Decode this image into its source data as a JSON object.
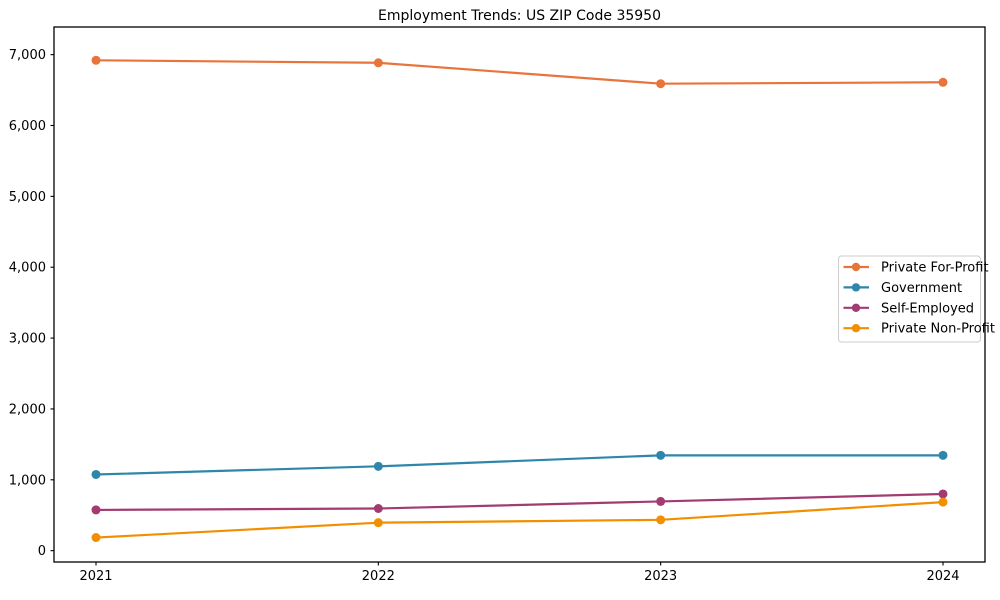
{
  "title": "Employment Trends: US ZIP Code 35950",
  "chart_data": {
    "type": "line",
    "title": "Employment Trends: US ZIP Code 35950",
    "categories": [
      "2021",
      "2022",
      "2023",
      "2024"
    ],
    "series": [
      {
        "name": "Private For-Profit",
        "color": "#E8743B",
        "values": [
          6920,
          6885,
          6590,
          6610
        ]
      },
      {
        "name": "Government",
        "color": "#2E86AB",
        "values": [
          1075,
          1190,
          1345,
          1345
        ]
      },
      {
        "name": "Self-Employed",
        "color": "#A23B72",
        "values": [
          575,
          595,
          695,
          800
        ]
      },
      {
        "name": "Private Non-Profit",
        "color": "#F18F01",
        "values": [
          185,
          395,
          435,
          685
        ]
      }
    ],
    "xlabel": "",
    "ylabel": "",
    "ylim": [
      -160,
      7390
    ],
    "yticks": [
      0,
      1000,
      2000,
      3000,
      4000,
      5000,
      6000,
      7000
    ],
    "ytick_labels": [
      "0",
      "1,000",
      "2,000",
      "3,000",
      "4,000",
      "5,000",
      "6,000",
      "7,000"
    ],
    "grid": false,
    "legend_position": "center-right",
    "marker": "circle",
    "axis_color": "#000000",
    "legend_border_color": "#cccccc",
    "legend_background": "#ffffff"
  }
}
